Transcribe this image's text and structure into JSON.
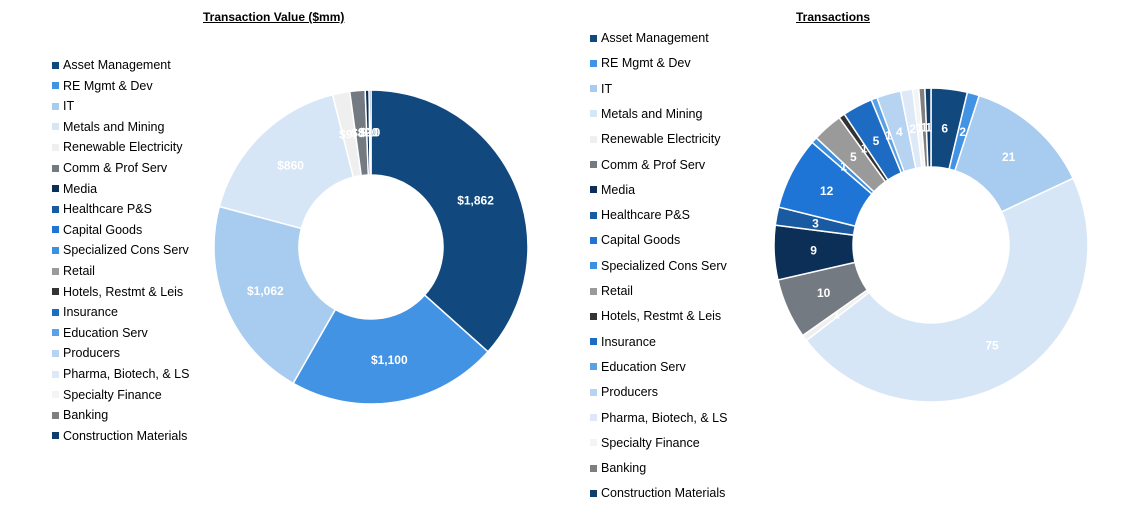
{
  "colors": {
    "Asset Management": "#11497f",
    "RE Mgmt & Dev": "#4393e4",
    "IT": "#a8cbf0",
    "Metals and Mining": "#d7e6f7",
    "Renewable Electricity": "#efefef",
    "Comm & Prof Serv": "#747a82",
    "Media": "#0b2f57",
    "Healthcare P&S": "#1a5aa0",
    "Capital Goods": "#1f75d6",
    "Specialized Cons Serv": "#3d8fdf",
    "Retail": "#9a9a9a",
    "Hotels, Restmt & Leis": "#333333",
    "Insurance": "#1d6bc2",
    "Education Serv": "#5aa1e6",
    "Producers": "#b6d3f2",
    "Pharma, Biotech, & LS": "#dde9f7",
    "Specialty Finance": "#f4f4f4",
    "Banking": "#7f7f7f",
    "Construction Materials": "#0f3e6c"
  },
  "chart_data": [
    {
      "type": "pie",
      "title": "Transaction Value ($mm)",
      "legend": [
        "Asset Management",
        "RE Mgmt & Dev",
        "IT",
        "Metals and Mining",
        "Renewable Electricity",
        "Comm & Prof Serv",
        "Media",
        "Healthcare P&S",
        "Capital Goods",
        "Specialized Cons Serv",
        "Retail",
        "Hotels, Restmt & Leis",
        "Insurance",
        "Education Serv",
        "Producers",
        "Pharma, Biotech, & LS",
        "Specialty Finance",
        "Banking",
        "Construction Materials"
      ],
      "slices": [
        {
          "name": "Asset Management",
          "value": 1862,
          "label": "$1,862"
        },
        {
          "name": "RE Mgmt & Dev",
          "value": 1100,
          "label": "$1,100"
        },
        {
          "name": "IT",
          "value": 1062,
          "label": "$1,062"
        },
        {
          "name": "Metals and Mining",
          "value": 860,
          "label": "$860"
        },
        {
          "name": "Renewable Electricity",
          "value": 90,
          "label": "$90"
        },
        {
          "name": "Comm & Prof Serv",
          "value": 80,
          "label": "$80"
        },
        {
          "name": "Media",
          "value": 20,
          "label": "$20"
        },
        {
          "name": "Healthcare P&S",
          "value": 10,
          "label": "$10"
        }
      ]
    },
    {
      "type": "pie",
      "title": "Transactions",
      "legend": [
        "Asset Management",
        "RE Mgmt & Dev",
        "IT",
        "Metals and Mining",
        "Renewable Electricity",
        "Comm & Prof Serv",
        "Media",
        "Healthcare P&S",
        "Capital Goods",
        "Specialized Cons Serv",
        "Retail",
        "Hotels, Restmt & Leis",
        "Insurance",
        "Education Serv",
        "Producers",
        "Pharma, Biotech, & LS",
        "Specialty Finance",
        "Banking",
        "Construction Materials"
      ],
      "slices": [
        {
          "name": "Asset Management",
          "value": 6,
          "label": "6"
        },
        {
          "name": "RE Mgmt & Dev",
          "value": 2,
          "label": "2"
        },
        {
          "name": "IT",
          "value": 21,
          "label": "21"
        },
        {
          "name": "Metals and Mining",
          "value": 75,
          "label": "75"
        },
        {
          "name": "Renewable Electricity",
          "value": 1,
          "label": "1"
        },
        {
          "name": "Comm & Prof Serv",
          "value": 10,
          "label": "10"
        },
        {
          "name": "Media",
          "value": 9,
          "label": "9"
        },
        {
          "name": "Healthcare P&S",
          "value": 3,
          "label": "3"
        },
        {
          "name": "Capital Goods",
          "value": 12,
          "label": "12"
        },
        {
          "name": "Specialized Cons Serv",
          "value": 1,
          "label": "1"
        },
        {
          "name": "Retail",
          "value": 5,
          "label": "5"
        },
        {
          "name": "Hotels, Restmt & Leis",
          "value": 1,
          "label": "1"
        },
        {
          "name": "Insurance",
          "value": 5,
          "label": "5"
        },
        {
          "name": "Education Serv",
          "value": 1,
          "label": "1"
        },
        {
          "name": "Producers",
          "value": 4,
          "label": "4"
        },
        {
          "name": "Pharma, Biotech, & LS",
          "value": 2,
          "label": "2"
        },
        {
          "name": "Specialty Finance",
          "value": 1,
          "label": "1"
        },
        {
          "name": "Banking",
          "value": 1,
          "label": "1"
        },
        {
          "name": "Construction Materials",
          "value": 1,
          "label": "1"
        }
      ]
    }
  ]
}
